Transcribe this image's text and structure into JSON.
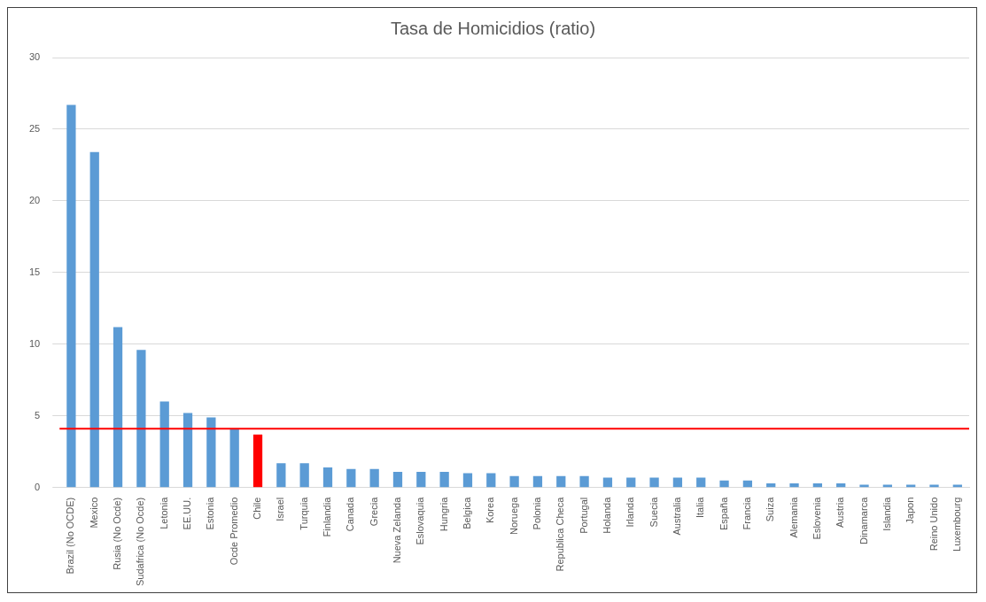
{
  "chart_data": {
    "type": "bar",
    "title": "Tasa de Homicidios (ratio)",
    "categories": [
      "Brazil (No OCDE)",
      "Mexico",
      "Rusia (No Ocde)",
      "Sudafrica (No Ocde)",
      "Letonia",
      "EE.UU.",
      "Estonia",
      "Ocde Promedio",
      "Chile",
      "Israel",
      "Turquia",
      "Finlandia",
      "Canada",
      "Grecia",
      "Nueva Zelanda",
      "Eslovaquia",
      "Hungria",
      "Belgica",
      "Korea",
      "Noruega",
      "Polonia",
      "Republica Checa",
      "Portugal",
      "Holanda",
      "Irlanda",
      "Suecia",
      "Australia",
      "Italia",
      "España",
      "Francia",
      "Suiza",
      "Alemania",
      "Eslovenia",
      "Austria",
      "Dinamarca",
      "Islandia",
      "Japon",
      "Reino Unido",
      "Luxembourg"
    ],
    "values": [
      26.7,
      23.4,
      11.2,
      9.6,
      6.0,
      5.2,
      4.9,
      4.1,
      3.7,
      1.7,
      1.7,
      1.4,
      1.3,
      1.3,
      1.1,
      1.1,
      1.1,
      1.0,
      1.0,
      0.8,
      0.8,
      0.8,
      0.8,
      0.7,
      0.7,
      0.7,
      0.7,
      0.7,
      0.5,
      0.5,
      0.3,
      0.3,
      0.3,
      0.3,
      0.2,
      0.2,
      0.2,
      0.2,
      0.2
    ],
    "colors": [
      "#5b9bd5",
      "#5b9bd5",
      "#5b9bd5",
      "#5b9bd5",
      "#5b9bd5",
      "#5b9bd5",
      "#5b9bd5",
      "#5b9bd5",
      "#ff0000",
      "#5b9bd5",
      "#5b9bd5",
      "#5b9bd5",
      "#5b9bd5",
      "#5b9bd5",
      "#5b9bd5",
      "#5b9bd5",
      "#5b9bd5",
      "#5b9bd5",
      "#5b9bd5",
      "#5b9bd5",
      "#5b9bd5",
      "#5b9bd5",
      "#5b9bd5",
      "#5b9bd5",
      "#5b9bd5",
      "#5b9bd5",
      "#5b9bd5",
      "#5b9bd5",
      "#5b9bd5",
      "#5b9bd5",
      "#5b9bd5",
      "#5b9bd5",
      "#5b9bd5",
      "#5b9bd5",
      "#5b9bd5",
      "#5b9bd5",
      "#5b9bd5",
      "#5b9bd5",
      "#5b9bd5"
    ],
    "ylim": [
      0,
      30
    ],
    "yticks": [
      0,
      5,
      10,
      15,
      20,
      25,
      30
    ],
    "grid": "y",
    "legend": false,
    "ref_lines": [
      {
        "axis": "y",
        "value": 4.1,
        "color": "#ff0000"
      }
    ]
  }
}
